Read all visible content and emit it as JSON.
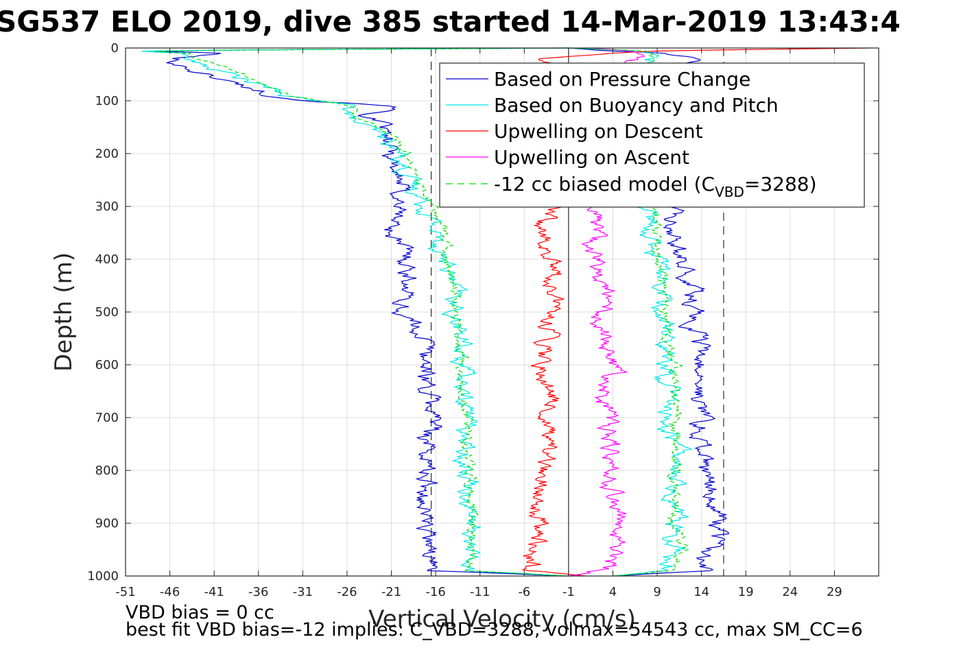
{
  "chart_data": {
    "type": "line",
    "title": "SG537 ELO 2019, dive 385 started 14-Mar-2019 13:43:4",
    "xlabel": "Vertical Velocity (cm/s)",
    "ylabel": "Depth (m)",
    "xlim": [
      -51,
      34
    ],
    "ylim": [
      1000,
      0
    ],
    "y_reversed": true,
    "grid": true,
    "x_ticks": [
      -51,
      -46,
      -41,
      -36,
      -31,
      -26,
      -21,
      -16,
      -11,
      -6,
      -1,
      4,
      9,
      14,
      19,
      24,
      29
    ],
    "y_ticks": [
      0,
      100,
      200,
      300,
      400,
      500,
      600,
      700,
      800,
      900,
      1000
    ],
    "legend_position": "top-right",
    "reference_lines": [
      {
        "x": -1,
        "style": "solid",
        "color": "#000000"
      },
      {
        "x": -16.5,
        "style": "dashed",
        "color": "#000000"
      },
      {
        "x": 16.5,
        "style": "dashed",
        "color": "#000000"
      }
    ],
    "series": [
      {
        "name": "Based on Pressure Change",
        "color": "#0000cc",
        "style": "solid",
        "depth": [
          0,
          5,
          10,
          20,
          30,
          50,
          70,
          90,
          100,
          110,
          130,
          150,
          170,
          200,
          250,
          300,
          350,
          400,
          450,
          500,
          550,
          600,
          650,
          700,
          750,
          800,
          850,
          900,
          950,
          990,
          1000
        ],
        "velocity": [
          -1,
          -50,
          -40,
          -46,
          -45,
          -42,
          -38,
          -34,
          -30,
          -20,
          -24,
          -22,
          -22,
          -21,
          -20,
          -20,
          -21,
          -19,
          -19,
          -20,
          -17,
          -17,
          -17,
          -16,
          -17,
          -17,
          -17,
          -17,
          -17,
          -16,
          -1
        ],
        "velocity_ascent": [
          -1,
          3,
          9,
          13,
          13,
          13,
          13,
          12,
          11,
          11,
          11,
          11,
          11,
          11,
          11,
          11,
          11,
          12,
          13,
          13,
          14,
          14,
          14,
          14,
          14,
          14,
          15,
          16,
          15,
          14,
          4
        ]
      },
      {
        "name": "Based on Buoyancy and Pitch",
        "color": "#00e5e5",
        "style": "solid",
        "depth": [
          0,
          5,
          10,
          20,
          30,
          50,
          70,
          90,
          100,
          110,
          130,
          150,
          170,
          200,
          250,
          300,
          350,
          400,
          450,
          500,
          550,
          600,
          650,
          700,
          750,
          800,
          850,
          900,
          950,
          990,
          1000
        ],
        "velocity": [
          -1,
          -50,
          -44,
          -44,
          -43,
          -39,
          -36,
          -33,
          -30,
          -25,
          -26,
          -24,
          -22,
          -20,
          -19,
          -17,
          -16,
          -15,
          -14,
          -14,
          -13,
          -13,
          -13,
          -12,
          -13,
          -12,
          -12,
          -12,
          -12,
          -12,
          -1
        ],
        "velocity_ascent": [
          -1,
          7,
          8,
          8,
          8,
          8,
          8,
          8,
          8,
          8,
          8,
          8,
          8,
          8,
          8,
          8,
          8,
          9,
          9,
          10,
          10,
          10,
          10,
          10,
          11,
          11,
          11,
          11,
          11,
          10,
          4
        ]
      },
      {
        "name": "Upwelling on Descent",
        "color": "#ff0000",
        "style": "solid",
        "depth": [
          0,
          5,
          10,
          20,
          50,
          100,
          150,
          200,
          250,
          300,
          350,
          400,
          450,
          500,
          550,
          600,
          650,
          700,
          750,
          800,
          850,
          900,
          950,
          990,
          1000
        ],
        "velocity": [
          33,
          10,
          4,
          -3,
          -3,
          -3,
          -3,
          -3,
          -3,
          -3,
          -4,
          -3,
          -3,
          -3,
          -3,
          -4,
          -3,
          -3,
          -4,
          -4,
          -4,
          -4,
          -5,
          -5,
          1
        ]
      },
      {
        "name": "Upwelling on Ascent",
        "color": "#ff00ff",
        "style": "solid",
        "depth": [
          0,
          5,
          10,
          20,
          50,
          100,
          150,
          200,
          250,
          300,
          350,
          400,
          450,
          500,
          550,
          600,
          650,
          700,
          750,
          800,
          850,
          900,
          950,
          990,
          1000
        ],
        "velocity": [
          1,
          6,
          7,
          6,
          2,
          2,
          2,
          2,
          2,
          2,
          2,
          2,
          3,
          3,
          3,
          4,
          3,
          3,
          4,
          4,
          4,
          5,
          4,
          3,
          -1
        ]
      },
      {
        "name": "-12 cc biased model (C",
        "name_sub": "VBD",
        "name_suffix": "=3288)",
        "color": "#00dd00",
        "style": "dashed",
        "depth": [
          0,
          5,
          10,
          20,
          30,
          50,
          70,
          90,
          100,
          110,
          130,
          150,
          170,
          200,
          250,
          300,
          350,
          400,
          450,
          500,
          550,
          600,
          650,
          700,
          750,
          800,
          850,
          900,
          950,
          990,
          1000
        ],
        "velocity": [
          -1,
          -49,
          -44,
          -43,
          -41,
          -38,
          -35,
          -32,
          -29,
          -25,
          -25,
          -23,
          -21,
          -19,
          -18,
          -16,
          -15,
          -15,
          -14,
          -14,
          -13,
          -13,
          -13,
          -12,
          -13,
          -12,
          -12,
          -12,
          -12,
          -12,
          -1
        ],
        "velocity_ascent": [
          -1,
          7,
          8,
          8,
          8,
          8,
          8,
          8,
          8,
          8,
          8,
          8,
          8,
          8,
          8,
          8,
          9,
          9,
          10,
          10,
          10,
          11,
          11,
          11,
          11,
          11,
          11,
          11,
          12,
          11,
          4
        ]
      }
    ]
  },
  "footer": {
    "line1": "VBD bias = 0 cc",
    "line2": "best fit VBD bias=-12 implies: C_VBD=3288, volmax=54543 cc, max SM_CC=6"
  },
  "colors": {
    "grid": "#dcdcdc",
    "axes": "#262626"
  }
}
